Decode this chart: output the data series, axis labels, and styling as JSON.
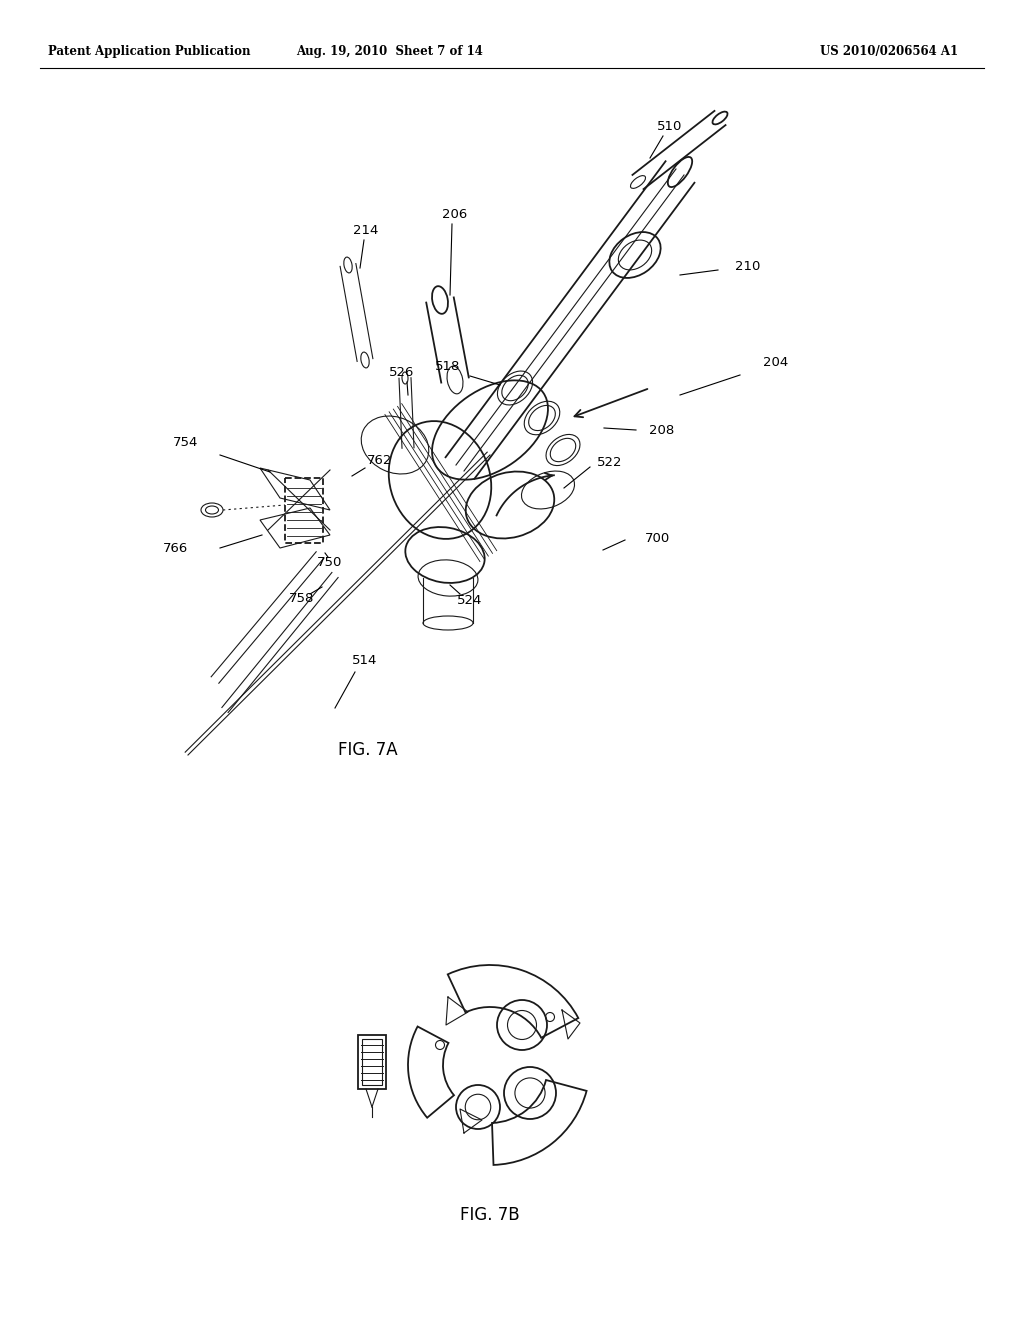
{
  "bg_color": "#ffffff",
  "line_color": "#1a1a1a",
  "header_left": "Patent Application Publication",
  "header_mid": "Aug. 19, 2010  Sheet 7 of 14",
  "header_right": "US 2010/0206564 A1",
  "fig7a_label": "FIG. 7A",
  "fig7b_label": "FIG. 7B"
}
